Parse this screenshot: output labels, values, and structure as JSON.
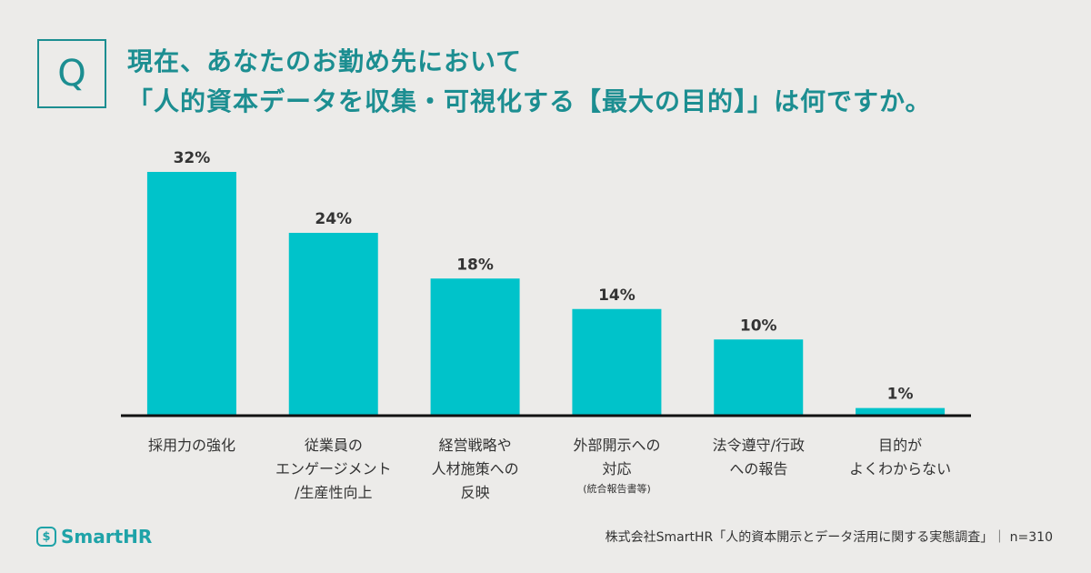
{
  "question": {
    "mark": "Q",
    "lines": [
      "現在、あなたのお勤め先において",
      "「人的資本データを収集・可視化する【最大の目的】」は何ですか。"
    ]
  },
  "chart_data": {
    "type": "bar",
    "categories": [
      "採用力の強化",
      "従業員の\nエンゲージメント\n/生産性向上",
      "経営戦略や\n人材施策への\n反映",
      "外部開示への\n対応",
      "法令遵守/行政\nへの報告",
      "目的が\nよくわからない"
    ],
    "category_note": "(統合報告書等)",
    "values": [
      32,
      24,
      18,
      14,
      10,
      1
    ],
    "value_labels": [
      "32%",
      "24%",
      "18%",
      "14%",
      "10%",
      "1%"
    ],
    "color": "#00c3ca"
  },
  "footer": {
    "logo": "SmartHR",
    "source": "株式会社SmartHR「人的資本開示とデータ活用に関する実態調査」｜ n=310"
  }
}
